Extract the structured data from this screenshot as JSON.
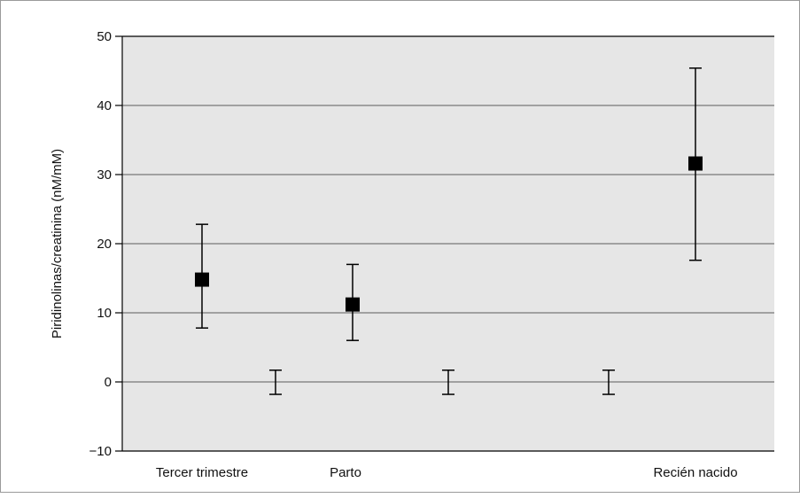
{
  "chart_data": {
    "type": "scatter",
    "ylabel": "Piridinolinas/creatinina (nM/mM)",
    "xlabel": "",
    "ylim": [
      -10,
      50
    ],
    "yticks": [
      50,
      40,
      30,
      20,
      10,
      0,
      -10
    ],
    "ytick_labels": [
      "50",
      "40",
      "30",
      "20",
      "10",
      "0",
      "−10"
    ],
    "grid": "horizontal",
    "categories": [
      "Tercer trimestre",
      "Parto",
      "Recién nacido"
    ],
    "points": [
      {
        "category": "Tercer trimestre",
        "mean": 14.8,
        "lower": 7.8,
        "upper": 22.8,
        "marker": "square"
      },
      {
        "category": "Parto",
        "mean": 11.2,
        "lower": 6.0,
        "upper": 17.0,
        "marker": "square"
      },
      {
        "category": "Recién nacido",
        "mean": 31.6,
        "lower": 17.6,
        "upper": 45.4,
        "marker": "square"
      }
    ],
    "unlabeled_error_bars": [
      {
        "lower": -1.8,
        "upper": 1.7
      },
      {
        "lower": -1.8,
        "upper": 1.7
      },
      {
        "lower": -1.8,
        "upper": 1.7
      }
    ],
    "colors": {
      "plot_background": "#e6e6e6",
      "grid": "#8a8a8a",
      "marks": "#000000"
    }
  }
}
